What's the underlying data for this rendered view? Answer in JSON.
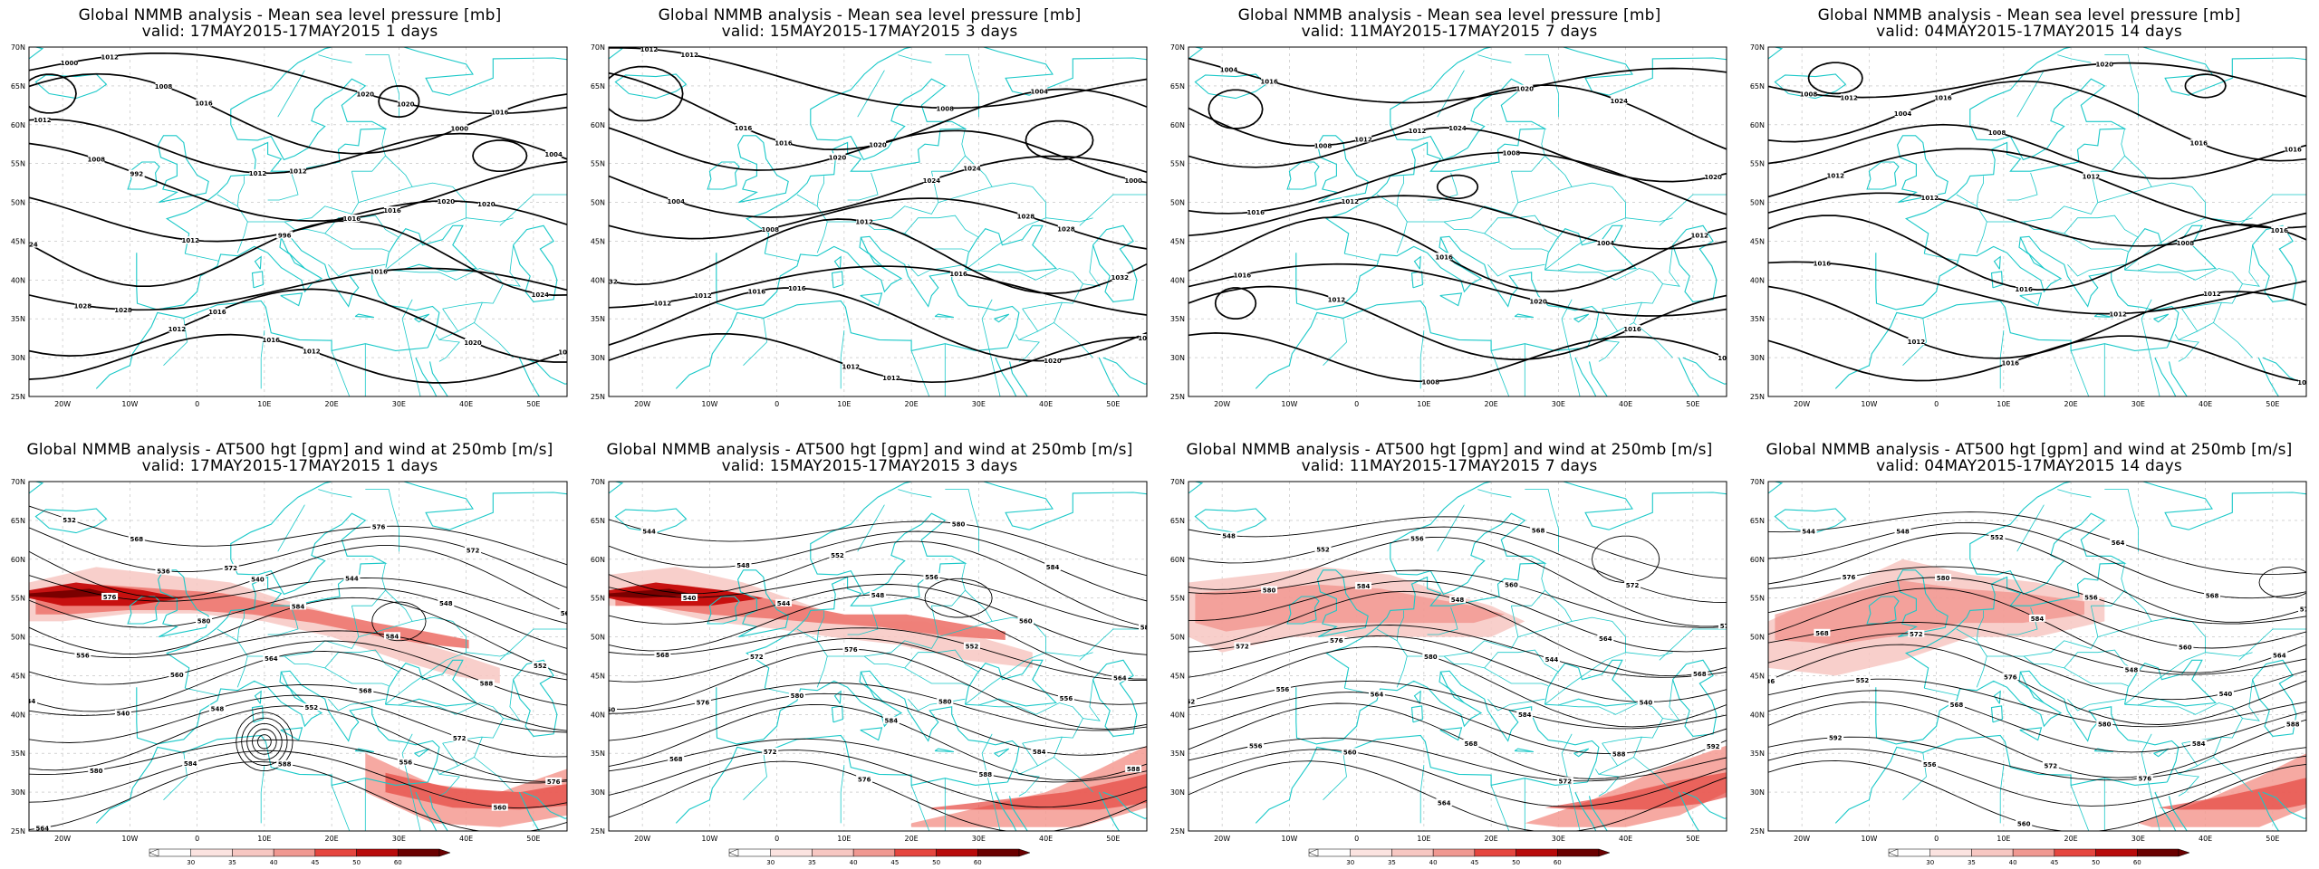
{
  "colors": {
    "coast": "#19c8c8",
    "contour": "#000000",
    "grid": "#bbbbbb",
    "wind_light": "#f7c7c2",
    "wind_dark": "#7a0000"
  },
  "axes": {
    "lat_labels": [
      "70N",
      "65N",
      "60N",
      "55N",
      "50N",
      "45N",
      "40N",
      "35N",
      "30N",
      "25N"
    ],
    "lon_labels": [
      "20W",
      "10W",
      "0",
      "10E",
      "20E",
      "30E",
      "40E",
      "50E"
    ]
  },
  "colorbar": {
    "labels": [
      "30",
      "35",
      "40",
      "45",
      "50",
      "60"
    ]
  },
  "panels": [
    {
      "l1": "Global NMMB analysis - Mean sea level pressure [mb]",
      "l2": "valid: 17MAY2015-17MAY2015   1 days",
      "kind": "mslp",
      "labels": [
        "1000",
        "1008",
        "1012",
        "1016",
        "1020",
        "1024",
        "1028",
        "1012",
        "1016",
        "1020",
        "1000",
        "1004",
        "1008",
        "1012",
        "996",
        "1016",
        "1020",
        "1016",
        "1012",
        "1016",
        "1012",
        "1016",
        "1020",
        "1024",
        "1028",
        "1016",
        "1012",
        "1020",
        "1016",
        "1012",
        "992"
      ]
    },
    {
      "l1": "Global NMMB analysis - Mean sea level pressure [mb]",
      "l2": "valid: 15MAY2015-17MAY2015   3 days",
      "kind": "mslp",
      "labels": [
        "1012",
        "1016",
        "1020",
        "1024",
        "1028",
        "1032",
        "1012",
        "1016",
        "1012",
        "1008",
        "1004",
        "1000",
        "1004",
        "1008",
        "1012",
        "1016",
        "1020",
        "1016",
        "1012",
        "1016",
        "1020",
        "1024",
        "1028",
        "1032",
        "1012",
        "1016",
        "1012"
      ]
    },
    {
      "l1": "Global NMMB analysis - Mean sea level pressure [mb]",
      "l2": "valid: 11MAY2015-17MAY2015   7 days",
      "kind": "mslp",
      "labels": [
        "1004",
        "1008",
        "1012",
        "1008",
        "1004",
        "1012",
        "1016",
        "1012",
        "1008",
        "1020",
        "1024",
        "1020",
        "1016",
        "1012",
        "1016",
        "1020",
        "1016",
        "1012",
        "1016",
        "1012",
        "1024"
      ]
    },
    {
      "l1": "Global NMMB analysis - Mean sea level pressure [mb]",
      "l2": "valid: 04MAY2015-17MAY2015   14 days",
      "kind": "mslp",
      "labels": [
        "1008",
        "1004",
        "1008",
        "1012",
        "1008",
        "1016",
        "1016",
        "1012",
        "1016",
        "1020",
        "1016",
        "1016",
        "1012",
        "1012",
        "1016",
        "1012",
        "1012",
        "1016",
        "1012",
        "1016"
      ]
    },
    {
      "l1": "Global NMMB analysis - AT500 hgt [gpm] and wind at 250mb [m/s]",
      "l2": "valid: 17MAY2015-17MAY2015   1 days",
      "kind": "z500",
      "labels": [
        "532",
        "536",
        "540",
        "544",
        "548",
        "552",
        "556",
        "560",
        "564",
        "568",
        "572",
        "576",
        "580",
        "584",
        "588",
        "576",
        "572",
        "568",
        "576",
        "580",
        "584",
        "584",
        "588",
        "544",
        "540",
        "548",
        "552",
        "556",
        "560",
        "564",
        "568",
        "572"
      ]
    },
    {
      "l1": "Global NMMB analysis - AT500 hgt [gpm] and wind at 250mb [m/s]",
      "l2": "valid: 15MAY2015-17MAY2015   3 days",
      "kind": "z500",
      "labels": [
        "544",
        "548",
        "552",
        "556",
        "560",
        "564",
        "568",
        "572",
        "576",
        "580",
        "584",
        "588",
        "568",
        "572",
        "576",
        "580",
        "584",
        "588",
        "540",
        "544",
        "548",
        "552",
        "556",
        "560",
        "576",
        "580",
        "584",
        "588"
      ]
    },
    {
      "l1": "Global NMMB analysis - AT500 hgt [gpm] and wind at 250mb [m/s]",
      "l2": "valid: 11MAY2015-17MAY2015   7 days",
      "kind": "z500",
      "labels": [
        "548",
        "552",
        "556",
        "560",
        "564",
        "568",
        "572",
        "576",
        "580",
        "584",
        "588",
        "592",
        "556",
        "560",
        "564",
        "568",
        "572",
        "576",
        "580",
        "584",
        "548",
        "544",
        "540",
        "552",
        "556",
        "564",
        "568",
        "572"
      ]
    },
    {
      "l1": "Global NMMB analysis - AT500 hgt [gpm] and wind at 250mb [m/s]",
      "l2": "valid: 04MAY2015-17MAY2015   14 days",
      "kind": "z500",
      "labels": [
        "544",
        "548",
        "552",
        "556",
        "560",
        "564",
        "568",
        "572",
        "576",
        "580",
        "584",
        "588",
        "592",
        "556",
        "560",
        "564",
        "568",
        "572",
        "576",
        "580",
        "584",
        "548",
        "540",
        "536",
        "552",
        "568",
        "572",
        "576"
      ]
    }
  ]
}
